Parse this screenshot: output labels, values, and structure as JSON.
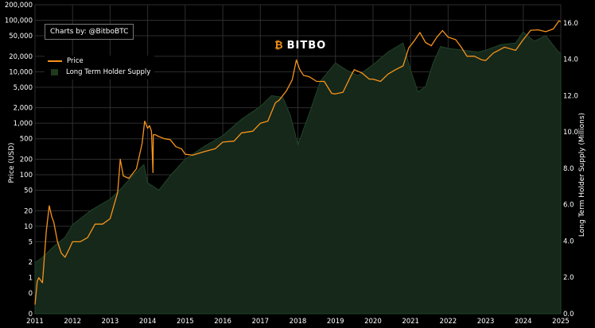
{
  "credit": "Charts by: @BitboBTC",
  "brand": "BITBO",
  "chart_data": {
    "type": "line",
    "title": "",
    "x_axis": {
      "label": "",
      "ticks": [
        "2011",
        "2012",
        "2013",
        "2014",
        "2015",
        "2016",
        "2017",
        "2018",
        "2019",
        "2020",
        "2021",
        "2022",
        "2023",
        "2024",
        "2025"
      ],
      "range": [
        2011,
        2025
      ]
    },
    "y_left": {
      "label": "Price (USD)",
      "scale": "log",
      "ticks": [
        "200,000",
        "100,000",
        "50,000",
        "20,000",
        "10,000",
        "5,000",
        "2,000",
        "1,000",
        "500",
        "200",
        "100",
        "50",
        "20",
        "10",
        "5",
        "2",
        "1",
        "0",
        "0"
      ],
      "tick_values": [
        200000,
        100000,
        50000,
        20000,
        10000,
        5000,
        2000,
        1000,
        500,
        200,
        100,
        50,
        20,
        10,
        5,
        2,
        1,
        0.5,
        0.2
      ]
    },
    "y_right": {
      "label": "Long Term Holder Supply (Millions)",
      "range": [
        0,
        17
      ],
      "ticks": [
        "0.0",
        "2.0",
        "4.0",
        "6.0",
        "8.0",
        "10.0",
        "12.0",
        "14.0",
        "16.0"
      ],
      "tick_values": [
        0,
        2,
        4,
        6,
        8,
        10,
        12,
        14,
        16
      ]
    },
    "legend": {
      "placement": "top-left",
      "entries": [
        "Price",
        "Long Term Holder Supply"
      ]
    },
    "grid": true,
    "colors": {
      "price": "#f7931a",
      "supply_fill": "#15281a",
      "supply_line": "#22442a",
      "grid": "#2e2e2e"
    },
    "series": [
      {
        "name": "Price",
        "axis": "left",
        "x": [
          2011.0,
          2011.06,
          2011.1,
          2011.2,
          2011.3,
          2011.38,
          2011.45,
          2011.5,
          2011.6,
          2011.7,
          2011.8,
          2011.9,
          2012.0,
          2012.2,
          2012.4,
          2012.6,
          2012.8,
          2013.0,
          2013.2,
          2013.27,
          2013.35,
          2013.5,
          2013.7,
          2013.85,
          2013.92,
          2014.0,
          2014.05,
          2014.1,
          2014.14,
          2014.15,
          2014.2,
          2014.3,
          2014.45,
          2014.6,
          2014.75,
          2014.9,
          2015.0,
          2015.2,
          2015.5,
          2015.8,
          2016.0,
          2016.3,
          2016.5,
          2016.8,
          2017.0,
          2017.2,
          2017.4,
          2017.5,
          2017.7,
          2017.85,
          2017.96,
          2018.05,
          2018.15,
          2018.3,
          2018.5,
          2018.7,
          2018.9,
          2019.0,
          2019.2,
          2019.4,
          2019.5,
          2019.7,
          2019.9,
          2020.0,
          2020.2,
          2020.4,
          2020.6,
          2020.8,
          2020.95,
          2021.1,
          2021.25,
          2021.4,
          2021.55,
          2021.7,
          2021.85,
          2022.0,
          2022.2,
          2022.35,
          2022.5,
          2022.7,
          2022.9,
          2023.0,
          2023.2,
          2023.5,
          2023.8,
          2024.0,
          2024.2,
          2024.4,
          2024.6,
          2024.8,
          2024.95,
          2025.0
        ],
        "values": [
          0.3,
          0.85,
          1.0,
          0.8,
          8,
          25,
          15,
          12,
          5,
          3,
          2.5,
          3.5,
          5,
          5,
          6,
          11,
          11,
          14,
          45,
          200,
          95,
          85,
          130,
          400,
          1100,
          800,
          900,
          700,
          110,
          600,
          600,
          550,
          500,
          480,
          350,
          320,
          250,
          240,
          280,
          320,
          430,
          450,
          650,
          700,
          1000,
          1100,
          2500,
          2800,
          4300,
          7000,
          17000,
          11000,
          8500,
          8000,
          6500,
          6500,
          3800,
          3700,
          4000,
          8000,
          11000,
          9500,
          7200,
          7200,
          6500,
          9000,
          11000,
          13000,
          29000,
          40000,
          58000,
          37000,
          32000,
          47000,
          63000,
          47000,
          42000,
          30000,
          20000,
          20000,
          17000,
          16500,
          23000,
          30000,
          26000,
          42000,
          64000,
          65000,
          60000,
          68000,
          97000,
          94000
        ]
      },
      {
        "name": "Long Term Holder Supply",
        "axis": "right",
        "type": "area",
        "x": [
          2011.0,
          2011.2,
          2011.5,
          2011.8,
          2012.0,
          2012.5,
          2013.0,
          2013.3,
          2013.6,
          2013.9,
          2014.0,
          2014.3,
          2014.6,
          2015.0,
          2015.5,
          2016.0,
          2016.5,
          2017.0,
          2017.3,
          2017.6,
          2017.8,
          2018.0,
          2018.3,
          2018.6,
          2019.0,
          2019.3,
          2019.6,
          2020.0,
          2020.4,
          2020.8,
          2021.0,
          2021.2,
          2021.4,
          2021.6,
          2021.8,
          2022.0,
          2022.4,
          2022.8,
          2023.0,
          2023.4,
          2023.8,
          2024.0,
          2024.1,
          2024.3,
          2024.6,
          2024.9,
          2025.0
        ],
        "values": [
          2.8,
          3.1,
          3.7,
          4.2,
          4.9,
          5.7,
          6.3,
          6.9,
          7.6,
          8.2,
          7.2,
          6.8,
          7.6,
          8.5,
          9.2,
          9.8,
          10.7,
          11.4,
          12.0,
          11.9,
          10.9,
          9.3,
          11.0,
          12.8,
          13.8,
          13.4,
          13.1,
          13.7,
          14.4,
          14.9,
          13.4,
          12.2,
          12.5,
          13.8,
          14.7,
          14.6,
          14.5,
          14.4,
          14.5,
          14.8,
          14.9,
          15.5,
          15.3,
          15.0,
          15.3,
          14.5,
          14.3
        ]
      }
    ]
  }
}
